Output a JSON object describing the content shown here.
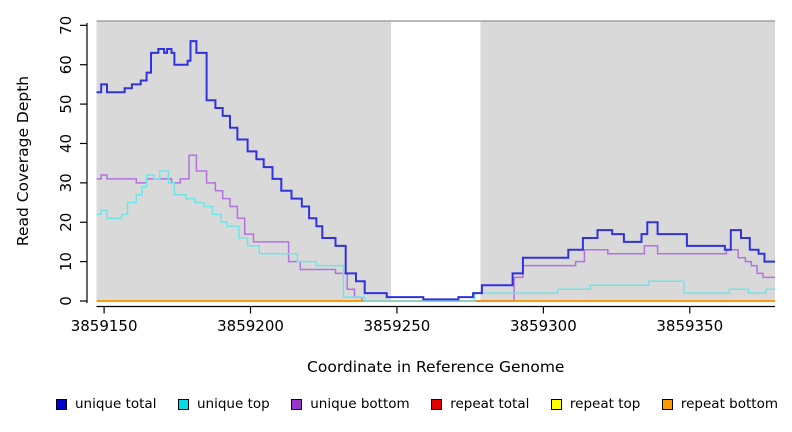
{
  "figure": {
    "background": "#ffffff"
  },
  "plot": {
    "background": "#d9d9d9",
    "top_border_color": "#a3a3a3",
    "gap_band": {
      "from": 3859248,
      "to": 3859278.5,
      "color": "#ffffff"
    }
  },
  "chart_data": {
    "type": "line",
    "subtype": "step-coverage",
    "xlabel": "Coordinate in Reference Genome",
    "ylabel": "Read Coverage Depth",
    "xlim": [
      3859147.4,
      3859379.1
    ],
    "ylim": [
      0,
      71.1
    ],
    "x_ticks": [
      3859150,
      3859200,
      3859250,
      3859300,
      3859350
    ],
    "y_ticks": [
      0,
      10,
      20,
      30,
      40,
      50,
      60,
      70
    ],
    "grid": false,
    "legend_position": "bottom",
    "series": [
      {
        "name": "repeat total",
        "color": "#e00000",
        "width": 1.4,
        "z": 1,
        "points": [
          [
            3859147.4,
            0
          ]
        ]
      },
      {
        "name": "repeat top",
        "color": "#ffff00",
        "width": 1.4,
        "z": 2,
        "points": [
          [
            3859147.4,
            0
          ]
        ]
      },
      {
        "name": "unique bottom",
        "color": "#b472e0",
        "width": 1.5,
        "z": 3,
        "points": [
          [
            3859147.4,
            31
          ],
          [
            3859149,
            32
          ],
          [
            3859151,
            31
          ],
          [
            3859161,
            30
          ],
          [
            3859164.5,
            31
          ],
          [
            3859173,
            30
          ],
          [
            3859176,
            31
          ],
          [
            3859179,
            37
          ],
          [
            3859181.5,
            33
          ],
          [
            3859185,
            30
          ],
          [
            3859188,
            28
          ],
          [
            3859190.5,
            26
          ],
          [
            3859193,
            24
          ],
          [
            3859195.5,
            21
          ],
          [
            3859198,
            17
          ],
          [
            3859201,
            15
          ],
          [
            3859213,
            10
          ],
          [
            3859217,
            8
          ],
          [
            3859229,
            7
          ],
          [
            3859233,
            3
          ],
          [
            3859235.5,
            1
          ],
          [
            3859238,
            0
          ],
          [
            3859290,
            6
          ],
          [
            3859293,
            9
          ],
          [
            3859311,
            10
          ],
          [
            3859314,
            13
          ],
          [
            3859322,
            12
          ],
          [
            3859334.5,
            14
          ],
          [
            3859339,
            12
          ],
          [
            3859362.5,
            13
          ],
          [
            3859366.5,
            11
          ],
          [
            3859369,
            10
          ],
          [
            3859371,
            9
          ],
          [
            3859373,
            7
          ],
          [
            3859375,
            6
          ]
        ]
      },
      {
        "name": "repeat bottom",
        "color": "#ff9100",
        "width": 1.5,
        "z": 4,
        "points": [
          [
            3859147.4,
            0
          ]
        ]
      },
      {
        "name": "unique top",
        "color": "#72e5e8",
        "width": 1.5,
        "z": 5,
        "points": [
          [
            3859147.4,
            22
          ],
          [
            3859149,
            23
          ],
          [
            3859151,
            21
          ],
          [
            3859156,
            22
          ],
          [
            3859158,
            25
          ],
          [
            3859161,
            27
          ],
          [
            3859163,
            29
          ],
          [
            3859164.5,
            32
          ],
          [
            3859167,
            31
          ],
          [
            3859169,
            33
          ],
          [
            3859172,
            30
          ],
          [
            3859174,
            27
          ],
          [
            3859178,
            26
          ],
          [
            3859181,
            25
          ],
          [
            3859184,
            24
          ],
          [
            3859187,
            22
          ],
          [
            3859190,
            20
          ],
          [
            3859192,
            19
          ],
          [
            3859196,
            16
          ],
          [
            3859199,
            14
          ],
          [
            3859203,
            12
          ],
          [
            3859216,
            10
          ],
          [
            3859222.5,
            9
          ],
          [
            3859231.7,
            1
          ],
          [
            3859239,
            0
          ],
          [
            3859276.5,
            2
          ],
          [
            3859305,
            3
          ],
          [
            3859316,
            4
          ],
          [
            3859336,
            5
          ],
          [
            3859348,
            2
          ],
          [
            3859363.5,
            3
          ],
          [
            3859370,
            2
          ],
          [
            3859376,
            3
          ]
        ]
      },
      {
        "name": "unique total",
        "color": "#3232dd",
        "width": 2,
        "z": 6,
        "points": [
          [
            3859147.4,
            53
          ],
          [
            3859149,
            55
          ],
          [
            3859151,
            53
          ],
          [
            3859157,
            54
          ],
          [
            3859159.5,
            55
          ],
          [
            3859162.5,
            56
          ],
          [
            3859164.5,
            58
          ],
          [
            3859166,
            63
          ],
          [
            3859168.5,
            64
          ],
          [
            3859170.5,
            63
          ],
          [
            3859171.5,
            64
          ],
          [
            3859173,
            63
          ],
          [
            3859174,
            60
          ],
          [
            3859178.5,
            61
          ],
          [
            3859179.5,
            66
          ],
          [
            3859181.5,
            63
          ],
          [
            3859185,
            51
          ],
          [
            3859188,
            49
          ],
          [
            3859190.5,
            47
          ],
          [
            3859193,
            44
          ],
          [
            3859195.5,
            41
          ],
          [
            3859199,
            38
          ],
          [
            3859202,
            36
          ],
          [
            3859204.5,
            34
          ],
          [
            3859207.5,
            31
          ],
          [
            3859210.5,
            28
          ],
          [
            3859214,
            26
          ],
          [
            3859217.5,
            24
          ],
          [
            3859220,
            21
          ],
          [
            3859222.5,
            19
          ],
          [
            3859224.5,
            16
          ],
          [
            3859229,
            14
          ],
          [
            3859232.5,
            7
          ],
          [
            3859236,
            5
          ],
          [
            3859239,
            2
          ],
          [
            3859246.5,
            1
          ],
          [
            3859259,
            0.4
          ],
          [
            3859271,
            1
          ],
          [
            3859276,
            2
          ],
          [
            3859279,
            4
          ],
          [
            3859289.5,
            7
          ],
          [
            3859293,
            11
          ],
          [
            3859308.5,
            13
          ],
          [
            3859313.5,
            16
          ],
          [
            3859318.5,
            18
          ],
          [
            3859323.5,
            17
          ],
          [
            3859327.5,
            15
          ],
          [
            3859333.5,
            17
          ],
          [
            3859335.5,
            20
          ],
          [
            3859339,
            17
          ],
          [
            3859349,
            14
          ],
          [
            3859362,
            13
          ],
          [
            3859364,
            18
          ],
          [
            3859367.5,
            16
          ],
          [
            3859370.5,
            13
          ],
          [
            3859373.5,
            12
          ],
          [
            3859375.5,
            10
          ]
        ]
      }
    ]
  },
  "legend": {
    "items": [
      {
        "label": "unique total",
        "color": "#0000cc"
      },
      {
        "label": "unique top",
        "color": "#00dde6"
      },
      {
        "label": "unique bottom",
        "color": "#9933cc"
      },
      {
        "label": "repeat total",
        "color": "#e00000"
      },
      {
        "label": "repeat top",
        "color": "#ffff00"
      },
      {
        "label": "repeat bottom",
        "color": "#ff9900"
      }
    ]
  }
}
